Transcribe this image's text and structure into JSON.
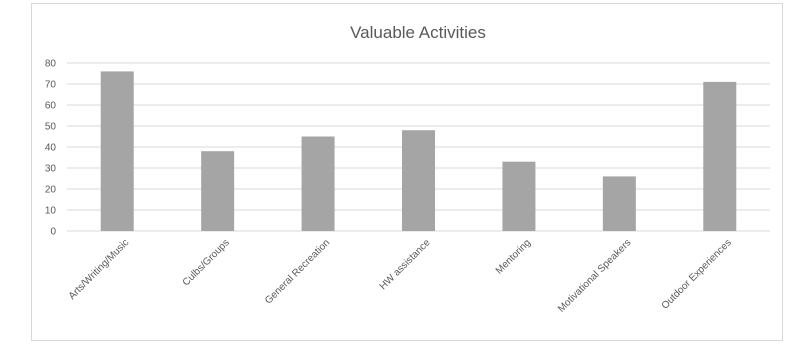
{
  "chart_data": {
    "type": "bar",
    "title": "Valuable Activities",
    "xlabel": "",
    "ylabel": "",
    "categories": [
      "Arts/Writing/Music",
      "Culbs/Groups",
      "General Recreation",
      "HW assistance",
      "Mentoring",
      "Motivational Speakers",
      "Outdoor Experiences"
    ],
    "values": [
      76,
      38,
      45,
      48,
      33,
      26,
      71
    ],
    "ylim": [
      0,
      80
    ],
    "yticks": [
      0,
      10,
      20,
      30,
      40,
      50,
      60,
      70,
      80
    ],
    "grid": true,
    "legend": "none",
    "bar_color": "#a5a5a5",
    "grid_color": "#d9d9d9",
    "text_color": "#595959"
  }
}
